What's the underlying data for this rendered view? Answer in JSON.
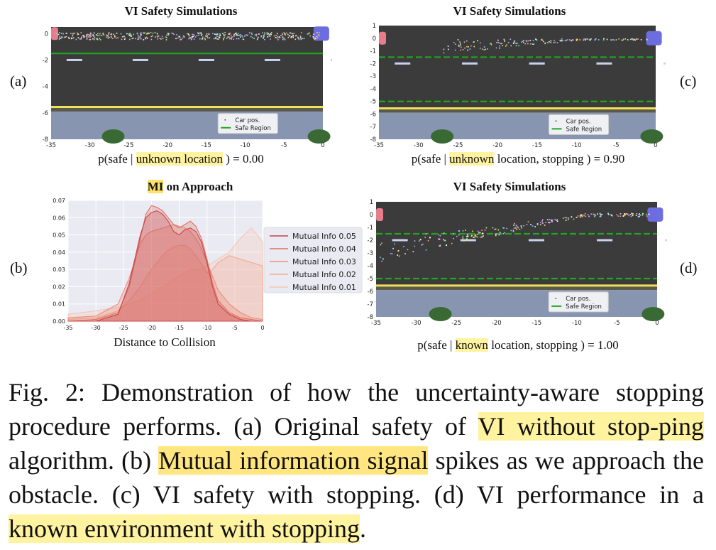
{
  "panels": {
    "a": {
      "label": "(a)",
      "title": "VI Safety Simulations",
      "caption_pre": "p(safe | ",
      "caption_hl": "unknown location",
      "caption_post": " ) = 0.00",
      "legend": [
        "Car pos.",
        "Safe Region"
      ]
    },
    "b": {
      "label": "(b)",
      "title_hl": "MI",
      "title_rest": " on Approach",
      "xlabel": "Distance to Collision",
      "legend": [
        "Mutual Info 0.05",
        "Mutual Info 0.04",
        "Mutual Info 0.03",
        "Mutual Info 0.02",
        "Mutual Info 0.01"
      ]
    },
    "c": {
      "label": "(c)",
      "title": "VI Safety Simulations",
      "caption_pre": "p(safe | ",
      "caption_hl": "unknown",
      "caption_post": " location, stopping ) = 0.90",
      "legend": [
        "Car pos.",
        "Safe Region"
      ]
    },
    "d": {
      "label": "(d)",
      "title": "VI Safety Simulations",
      "caption_pre": "p(safe | ",
      "caption_hl": "known",
      "caption_post": " location, stopping ) = 1.00",
      "legend": [
        "Car pos.",
        "Safe Region"
      ]
    }
  },
  "caption": {
    "p1": "Fig. 2: Demonstration of how the uncertainty-aware stopping procedure performs. (a) Original safety of ",
    "h1": "VI without stop-ping",
    "p2": " algorithm. (b) ",
    "h2": "Mutual information signal",
    "p3": " spikes as we approach the obstacle. (c) VI safety with stopping. (d) VI performance in a ",
    "h3": "known environment with stopping",
    "p4": "."
  },
  "chart_data": [
    {
      "id": "a",
      "type": "scatter",
      "title": "VI Safety Simulations",
      "xlim": [
        -35,
        0
      ],
      "ylim": [
        -8,
        0.5
      ],
      "xticks": [
        -35,
        -30,
        -25,
        -20,
        -15,
        -10,
        -5,
        0
      ],
      "yticks": [
        0,
        -2,
        -4,
        -6,
        -8
      ],
      "safe_region_y": [
        -1.5
      ],
      "trajectory": "flat",
      "legend": [
        "Car pos.",
        "Safe Region"
      ]
    },
    {
      "id": "c",
      "type": "scatter",
      "title": "VI Safety Simulations",
      "xlim": [
        -35,
        0
      ],
      "ylim": [
        -8,
        1
      ],
      "xticks": [
        -35,
        -30,
        -25,
        -20,
        -15,
        -10,
        -5,
        0
      ],
      "yticks": [
        1,
        0,
        -1,
        -2,
        -3,
        -4,
        -5,
        -6,
        -7,
        -8
      ],
      "safe_region_y": [
        -1.5,
        -5.0
      ],
      "trajectory": "fan-small",
      "legend": [
        "Car pos.",
        "Safe Region"
      ]
    },
    {
      "id": "d",
      "type": "scatter",
      "title": "VI Safety Simulations",
      "xlim": [
        -35,
        0
      ],
      "ylim": [
        -8,
        1
      ],
      "xticks": [
        -35,
        -30,
        -25,
        -20,
        -15,
        -10,
        -5,
        0
      ],
      "yticks": [
        1,
        0,
        -1,
        -2,
        -3,
        -4,
        -5,
        -6,
        -7,
        -8
      ],
      "safe_region_y": [
        -1.5,
        -5.0
      ],
      "trajectory": "fan-large",
      "legend": [
        "Car pos.",
        "Safe Region"
      ]
    },
    {
      "id": "b",
      "type": "area",
      "xlabel": "Distance to Collision",
      "xlim": [
        -35,
        0
      ],
      "ylim": [
        0,
        0.07
      ],
      "xticks": [
        -35,
        -30,
        -25,
        -20,
        -15,
        -10,
        -5,
        0
      ],
      "yticks": [
        0.0,
        0.01,
        0.02,
        0.03,
        0.04,
        0.05,
        0.06,
        0.07
      ],
      "series": [
        {
          "name": "Mutual Info 0.05",
          "color": "#c8454a",
          "x": [
            -35,
            -30,
            -26,
            -24,
            -22,
            -21,
            -20,
            -19,
            -18,
            -17,
            -16,
            -15,
            -14,
            -13,
            -12,
            -11,
            -10,
            -9,
            -8,
            -6,
            -4,
            -2,
            0
          ],
          "y": [
            0,
            0,
            0.004,
            0.022,
            0.05,
            0.06,
            0.063,
            0.064,
            0.062,
            0.058,
            0.052,
            0.05,
            0.053,
            0.054,
            0.052,
            0.046,
            0.034,
            0.02,
            0.01,
            0.004,
            0.001,
            0,
            0
          ]
        },
        {
          "name": "Mutual Info 0.04",
          "color": "#de6e62",
          "x": [
            -35,
            -30,
            -26,
            -24,
            -22,
            -21,
            -20,
            -19,
            -18,
            -17,
            -16,
            -15,
            -14,
            -13,
            -12,
            -11,
            -10,
            -9,
            -8,
            -6,
            -4,
            -2,
            0
          ],
          "y": [
            0,
            0.001,
            0.005,
            0.02,
            0.048,
            0.062,
            0.067,
            0.066,
            0.064,
            0.06,
            0.056,
            0.054,
            0.056,
            0.058,
            0.055,
            0.048,
            0.036,
            0.022,
            0.012,
            0.005,
            0.002,
            0.001,
            0
          ]
        },
        {
          "name": "Mutual Info 0.03",
          "color": "#eb8c78",
          "x": [
            -35,
            -30,
            -26,
            -24,
            -22,
            -21,
            -20,
            -19,
            -18,
            -17,
            -16,
            -15,
            -14,
            -13,
            -12,
            -11,
            -10,
            -9,
            -8,
            -6,
            -4,
            -2,
            0
          ],
          "y": [
            0.002,
            0.003,
            0.01,
            0.025,
            0.045,
            0.05,
            0.052,
            0.053,
            0.054,
            0.055,
            0.056,
            0.055,
            0.054,
            0.052,
            0.048,
            0.042,
            0.034,
            0.026,
            0.018,
            0.01,
            0.005,
            0.002,
            0.001
          ]
        },
        {
          "name": "Mutual Info 0.02",
          "color": "#f3aa94",
          "x": [
            -35,
            -30,
            -26,
            -24,
            -22,
            -21,
            -20,
            -19,
            -18,
            -17,
            -16,
            -15,
            -14,
            -13,
            -12,
            -11,
            -10,
            -9,
            -8,
            -6,
            -4,
            -2,
            0
          ],
          "y": [
            0.001,
            0.002,
            0.006,
            0.012,
            0.02,
            0.025,
            0.03,
            0.034,
            0.038,
            0.041,
            0.043,
            0.044,
            0.044,
            0.042,
            0.038,
            0.033,
            0.028,
            0.03,
            0.034,
            0.038,
            0.036,
            0.034,
            0.032
          ]
        },
        {
          "name": "Mutual Info 0.01",
          "color": "#f7c6b4",
          "x": [
            -35,
            -30,
            -26,
            -24,
            -22,
            -21,
            -20,
            -19,
            -18,
            -17,
            -16,
            -15,
            -14,
            -13,
            -12,
            -11,
            -10,
            -9,
            -8,
            -6,
            -4,
            -2,
            0
          ],
          "y": [
            0.004,
            0.006,
            0.008,
            0.01,
            0.012,
            0.014,
            0.016,
            0.018,
            0.02,
            0.022,
            0.024,
            0.026,
            0.028,
            0.03,
            0.03,
            0.03,
            0.032,
            0.034,
            0.036,
            0.04,
            0.048,
            0.054,
            0.046
          ]
        }
      ]
    }
  ]
}
